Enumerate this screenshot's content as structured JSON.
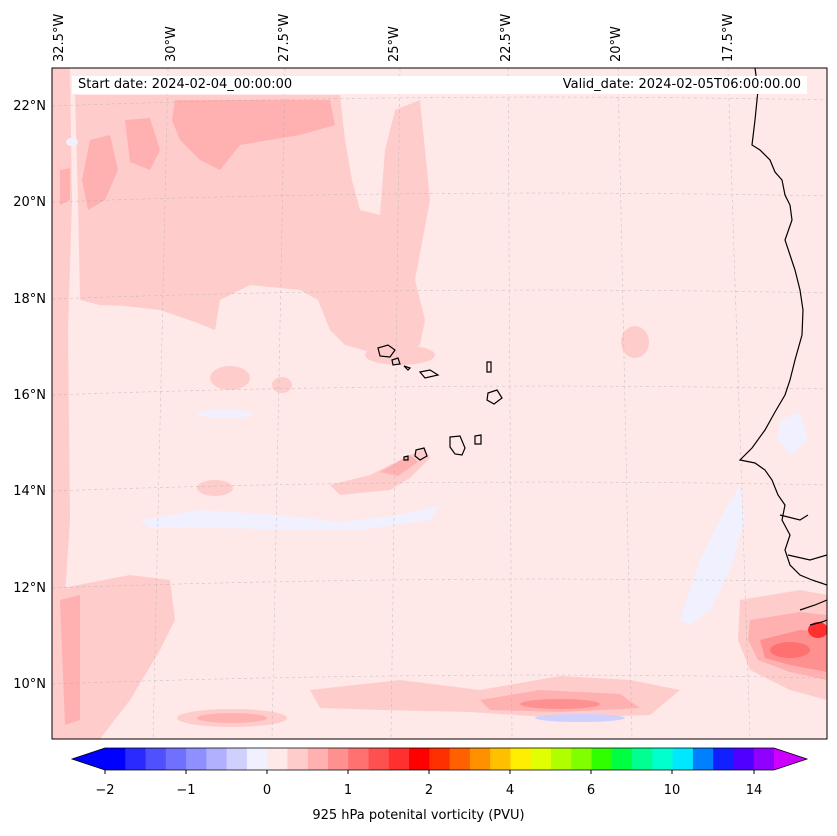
{
  "map": {
    "start_label": "Start date: 2024-02-04_00:00:00",
    "valid_label": "Valid_date: 2024-02-05T06:00:00.00",
    "lon_labels": [
      "32.5°W",
      "30°W",
      "27.5°W",
      "25°W",
      "22.5°W",
      "20°W",
      "17.5°W"
    ],
    "lat_labels": [
      "22°N",
      "20°N",
      "18°N",
      "16°N",
      "14°N",
      "12°N",
      "10°N"
    ],
    "colorbar": {
      "title": "925 hPa potenital vorticity (PVU)",
      "tick_labels": [
        "−2",
        "−1",
        "0",
        "1",
        "2",
        "4",
        "6",
        "10",
        "14"
      ],
      "colors": [
        "#0000ff",
        "#2a2aff",
        "#5050ff",
        "#7070ff",
        "#8f8fff",
        "#b0b0ff",
        "#d0d0ff",
        "#f0f0ff",
        "#ffe8e8",
        "#ffcccc",
        "#ffb0b0",
        "#ff9090",
        "#ff7070",
        "#ff5050",
        "#ff3030",
        "#ff0000",
        "#ff3000",
        "#ff6000",
        "#ff9000",
        "#ffc000",
        "#ffee00",
        "#e0ff00",
        "#b0ff00",
        "#80ff00",
        "#30ff00",
        "#00ff40",
        "#00ff90",
        "#00ffcc",
        "#00e8ff",
        "#0080ff",
        "#1020ff",
        "#5000ff",
        "#9000ff"
      ],
      "under_color": "#0000ff",
      "over_color": "#cc00ff"
    }
  }
}
